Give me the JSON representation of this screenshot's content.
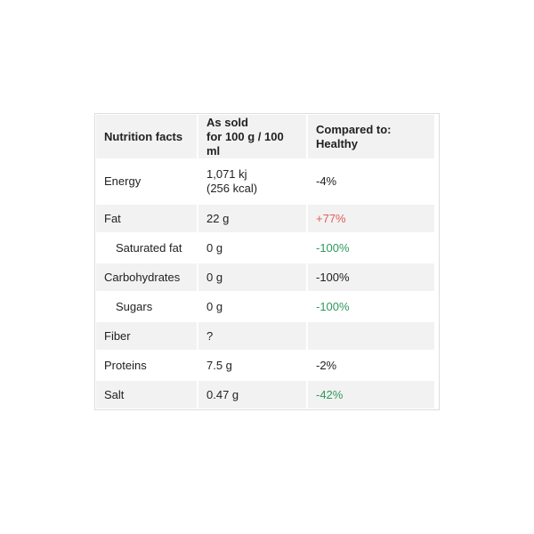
{
  "header": {
    "col1": "Nutrition facts",
    "col2_line1": "As sold",
    "col2_line2": "for 100 g / 100 ml",
    "col3": "Compared to: Healthy"
  },
  "colors": {
    "worse": "#e25c5c",
    "better": "#2e9a5a"
  },
  "rows": [
    {
      "name": "Energy",
      "value_line1": "1,071 kj",
      "value_line2": "(256 kcal)",
      "compare": "-4%",
      "status": "neutral"
    },
    {
      "name": "Fat",
      "value": "22 g",
      "compare": "+77%",
      "status": "worse"
    },
    {
      "name": "Saturated fat",
      "value": "0 g",
      "compare": "-100%",
      "status": "better",
      "sub": true
    },
    {
      "name": "Carbohydrates",
      "value": "0 g",
      "compare": "-100%",
      "status": "neutral"
    },
    {
      "name": "Sugars",
      "value": "0 g",
      "compare": "-100%",
      "status": "better",
      "sub": true
    },
    {
      "name": "Fiber",
      "value": "?",
      "compare": "",
      "status": "neutral"
    },
    {
      "name": "Proteins",
      "value": "7.5 g",
      "compare": "-2%",
      "status": "neutral"
    },
    {
      "name": "Salt",
      "value": "0.47 g",
      "compare": "-42%",
      "status": "better"
    }
  ]
}
